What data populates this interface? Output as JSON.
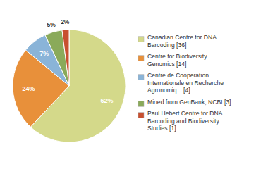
{
  "chart_data": {
    "type": "pie",
    "categories": [
      "Canadian Centre for DNA\nBarcoding [36]",
      "Centre for Biodiversity\nGenomics [14]",
      "Centre de Cooperation\nInternationale en Recherche\nAgronomiq... [4]",
      "Mined from GenBank, NCBI [3]",
      "Paul Hebert Centre for DNA\nBarcoding and Biodiversity\nStudies [1]"
    ],
    "values": [
      62,
      24,
      7,
      5,
      2
    ],
    "value_labels": [
      "62%",
      "24%",
      "7%",
      "5%",
      "2%"
    ],
    "colors": [
      "#d4d98a",
      "#e8903a",
      "#8ab4d8",
      "#8aaa5a",
      "#c85030"
    ],
    "data_labels": true,
    "legend": "right"
  }
}
